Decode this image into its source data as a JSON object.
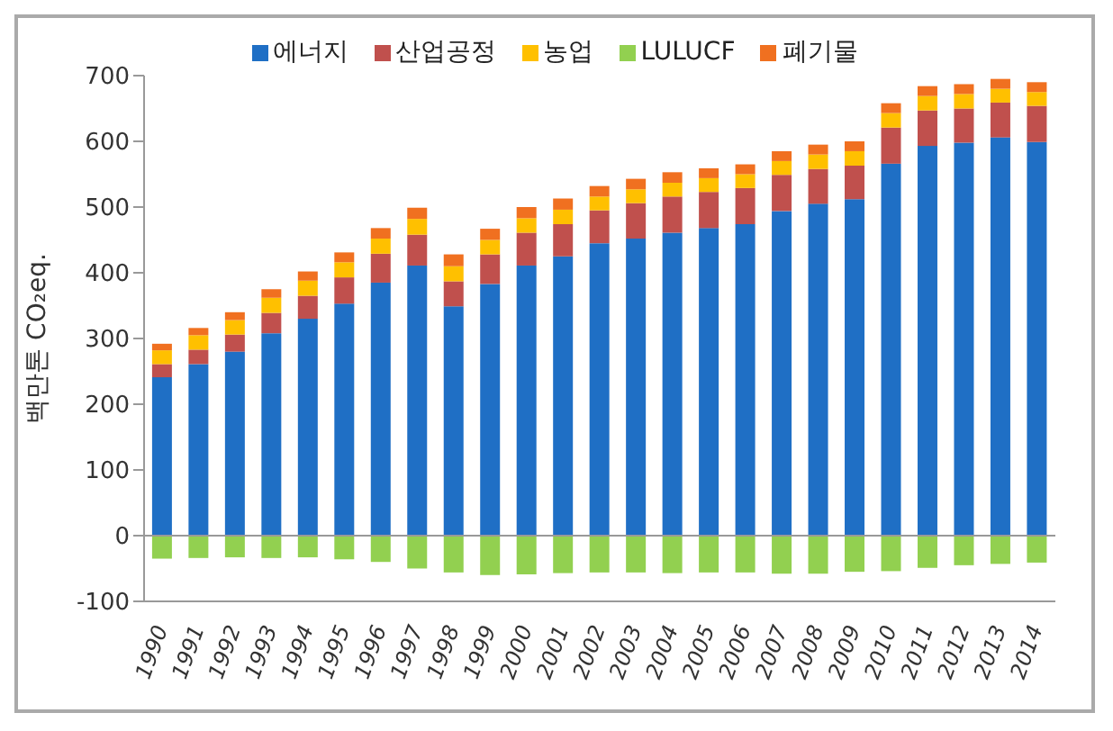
{
  "chart_data": {
    "type": "bar",
    "stacked": true,
    "ylabel": "백만톤 CO₂eq.",
    "categories": [
      "1990",
      "1991",
      "1992",
      "1993",
      "1994",
      "1995",
      "1996",
      "1997",
      "1998",
      "1999",
      "2000",
      "2001",
      "2002",
      "2003",
      "2004",
      "2005",
      "2006",
      "2007",
      "2008",
      "2009",
      "2010",
      "2011",
      "2012",
      "2013",
      "2014"
    ],
    "series": [
      {
        "name": "에너지",
        "color": "#1f6fc5",
        "values": [
          241,
          261,
          280,
          308,
          330,
          353,
          385,
          411,
          349,
          383,
          411,
          425,
          445,
          452,
          461,
          468,
          474,
          494,
          505,
          512,
          566,
          593,
          598,
          606,
          599
        ]
      },
      {
        "name": "산업공정",
        "color": "#c0504d",
        "values": [
          20,
          22,
          26,
          31,
          35,
          40,
          44,
          47,
          38,
          45,
          50,
          49,
          50,
          54,
          55,
          55,
          55,
          55,
          53,
          51,
          55,
          54,
          52,
          53,
          55
        ]
      },
      {
        "name": "농업",
        "color": "#ffc000",
        "values": [
          21,
          22,
          22,
          23,
          23,
          23,
          23,
          24,
          23,
          22,
          22,
          22,
          21,
          21,
          21,
          21,
          21,
          21,
          22,
          22,
          22,
          22,
          22,
          21,
          21
        ]
      },
      {
        "name": "LULUCF",
        "color": "#92d050",
        "values": [
          -35,
          -34,
          -33,
          -34,
          -33,
          -36,
          -40,
          -50,
          -56,
          -60,
          -59,
          -57,
          -56,
          -56,
          -57,
          -56,
          -56,
          -58,
          -58,
          -55,
          -54,
          -49,
          -45,
          -43,
          -41
        ]
      },
      {
        "name": "폐기물",
        "color": "#f07020",
        "values": [
          10,
          11,
          12,
          13,
          14,
          15,
          16,
          17,
          18,
          17,
          17,
          17,
          16,
          16,
          16,
          15,
          15,
          15,
          15,
          15,
          15,
          15,
          15,
          15,
          15
        ]
      }
    ],
    "ylim": [
      -100,
      700
    ],
    "yticks": [
      -100,
      0,
      100,
      200,
      300,
      400,
      500,
      600,
      700
    ],
    "ref_lines": [
      {
        "axis": "y",
        "value": 0,
        "color": "#999999"
      }
    ],
    "legend": "top"
  }
}
